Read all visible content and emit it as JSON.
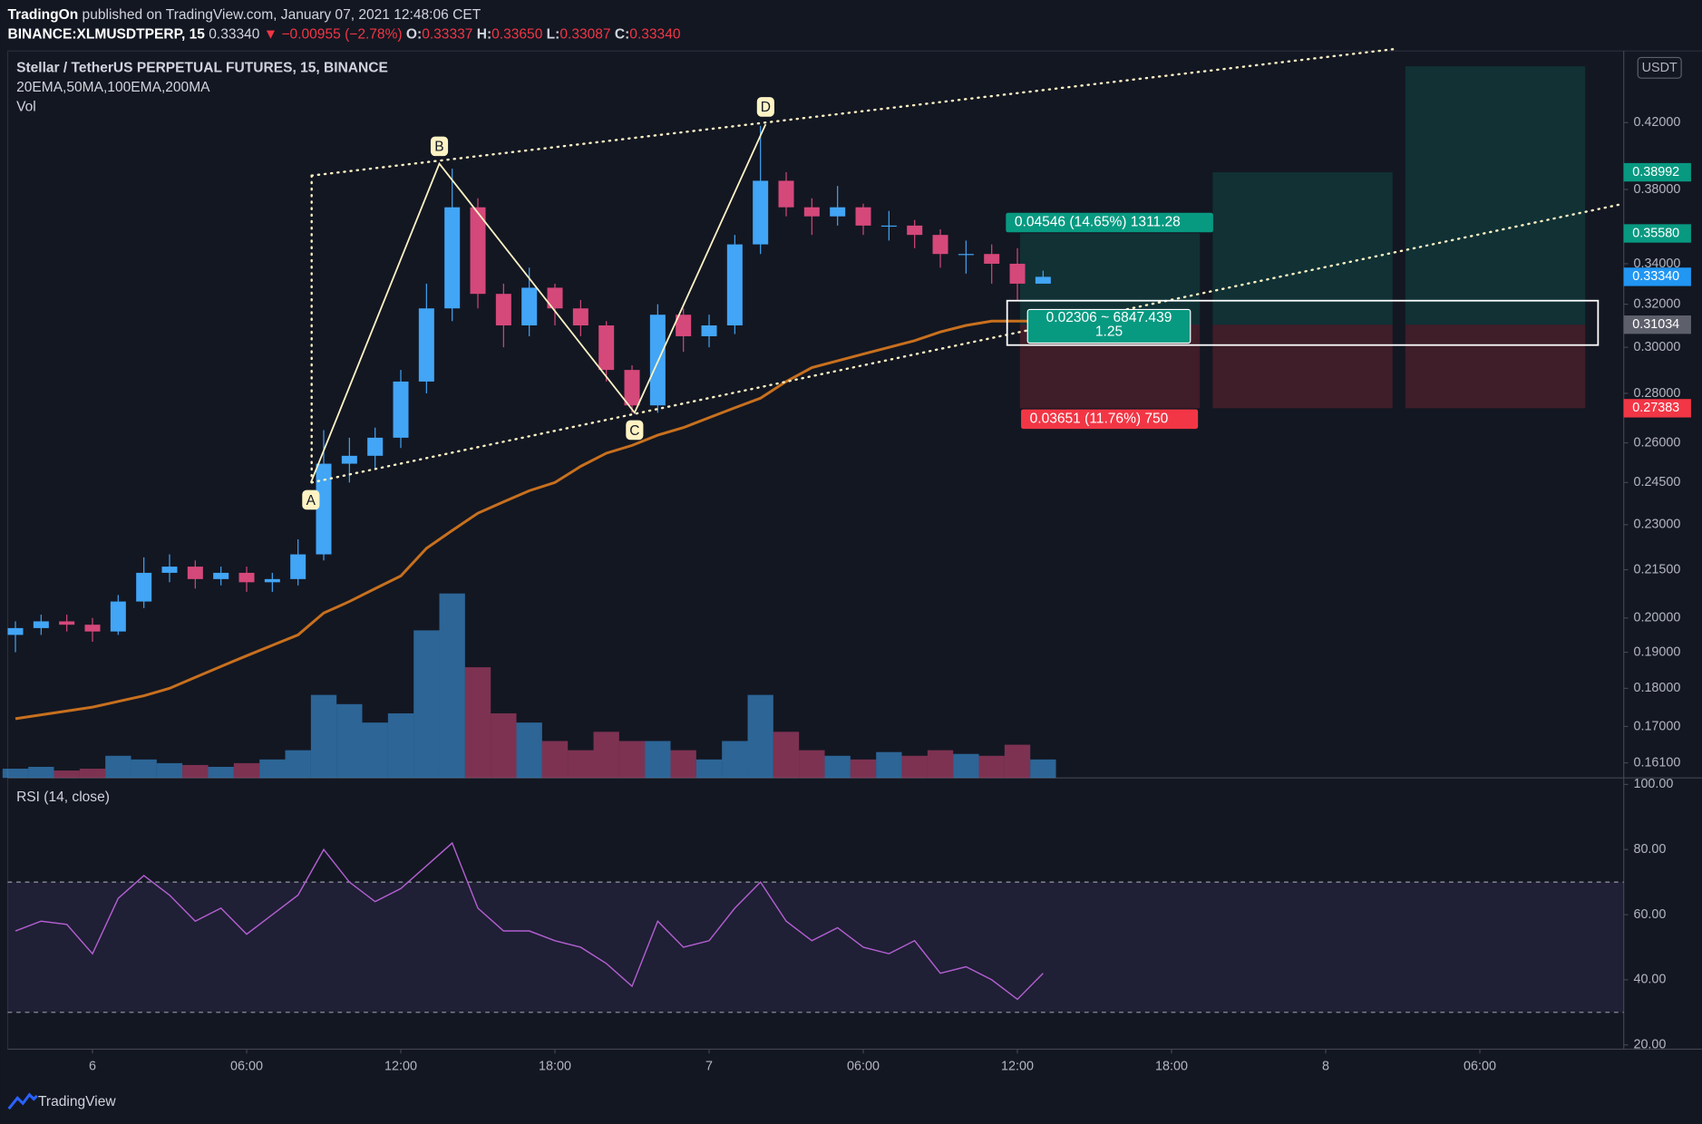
{
  "header": {
    "publisher": "TradingOn",
    "published": "published on TradingView.com, January 07, 2021 12:48:06 CET",
    "symbol": "BINANCE:XLMUSDTPERP, 15",
    "last": "0.33340",
    "change": "▼ −0.00955 (−2.78%)",
    "o_label": "O:",
    "open": "0.33337",
    "h_label": "H:",
    "high": "0.33650",
    "l_label": "L:",
    "low": "0.33087",
    "c_label": "C:",
    "close": "0.33340"
  },
  "footer": {
    "brand": "TradingView"
  },
  "chart_data": [
    {
      "type": "candlestick",
      "title": "Stellar / TetherUS PERPETUAL FUTURES, 15, BINANCE",
      "subtitle": "20EMA,50MA,100EMA,200MA",
      "volume_label": "Vol",
      "currency": "USDT",
      "log_scale": true,
      "x": [
        -3,
        -2,
        -1,
        0,
        1,
        2,
        3,
        4,
        5,
        6,
        7,
        8,
        9,
        10,
        11,
        12,
        13,
        14,
        15,
        16,
        17,
        18,
        19,
        20,
        21,
        22,
        23,
        24,
        25,
        26,
        27,
        28,
        29,
        30,
        31,
        32,
        33,
        34,
        35,
        36,
        37
      ],
      "xlim": [
        -3.3,
        59.6
      ],
      "ylim": [
        0.1574,
        0.4676
      ],
      "yticks": [
        {
          "value": 0.42,
          "label": "0.42000"
        },
        {
          "value": 0.38,
          "label": "0.38000"
        },
        {
          "value": 0.34,
          "label": "0.34000"
        },
        {
          "value": 0.32,
          "label": "0.32000"
        },
        {
          "value": 0.3,
          "label": "0.30000"
        },
        {
          "value": 0.28,
          "label": "0.28000"
        },
        {
          "value": 0.26,
          "label": "0.26000"
        },
        {
          "value": 0.245,
          "label": "0.24500"
        },
        {
          "value": 0.23,
          "label": "0.23000"
        },
        {
          "value": 0.215,
          "label": "0.21500"
        },
        {
          "value": 0.2,
          "label": "0.20000"
        },
        {
          "value": 0.19,
          "label": "0.19000"
        },
        {
          "value": 0.18,
          "label": "0.18000"
        },
        {
          "value": 0.17,
          "label": "0.17000"
        },
        {
          "value": 0.161,
          "label": "0.16100"
        }
      ],
      "up_color": "#42a5f5",
      "down_color": "#d5487a",
      "open": [
        0.195,
        0.197,
        0.199,
        0.198,
        0.196,
        0.205,
        0.214,
        0.216,
        0.212,
        0.214,
        0.211,
        0.212,
        0.22,
        0.252,
        0.255,
        0.262,
        0.285,
        0.318,
        0.37,
        0.325,
        0.31,
        0.328,
        0.318,
        0.31,
        0.29,
        0.275,
        0.315,
        0.305,
        0.31,
        0.35,
        0.385,
        0.37,
        0.365,
        0.37,
        0.36,
        0.36,
        0.355,
        0.345,
        0.345,
        0.34,
        0.33
      ],
      "high": [
        0.199,
        0.201,
        0.201,
        0.2,
        0.207,
        0.219,
        0.22,
        0.218,
        0.216,
        0.216,
        0.214,
        0.225,
        0.265,
        0.262,
        0.266,
        0.29,
        0.33,
        0.392,
        0.375,
        0.33,
        0.338,
        0.33,
        0.322,
        0.312,
        0.292,
        0.32,
        0.318,
        0.315,
        0.355,
        0.418,
        0.39,
        0.375,
        0.382,
        0.372,
        0.368,
        0.363,
        0.358,
        0.352,
        0.35,
        0.348,
        0.3365
      ],
      "low": [
        0.19,
        0.195,
        0.196,
        0.193,
        0.195,
        0.203,
        0.211,
        0.209,
        0.21,
        0.208,
        0.208,
        0.21,
        0.218,
        0.245,
        0.25,
        0.258,
        0.28,
        0.312,
        0.318,
        0.3,
        0.305,
        0.31,
        0.305,
        0.285,
        0.272,
        0.272,
        0.298,
        0.3,
        0.306,
        0.345,
        0.365,
        0.355,
        0.36,
        0.355,
        0.352,
        0.348,
        0.338,
        0.335,
        0.33,
        0.322,
        0.33087
      ],
      "close": [
        0.197,
        0.199,
        0.198,
        0.196,
        0.205,
        0.214,
        0.216,
        0.212,
        0.214,
        0.211,
        0.212,
        0.22,
        0.252,
        0.255,
        0.262,
        0.285,
        0.318,
        0.37,
        0.325,
        0.31,
        0.328,
        0.318,
        0.31,
        0.29,
        0.275,
        0.315,
        0.305,
        0.31,
        0.35,
        0.385,
        0.37,
        0.365,
        0.37,
        0.36,
        0.36,
        0.355,
        0.345,
        0.345,
        0.34,
        0.33,
        0.3334
      ],
      "ema": {
        "color": "#c8701e",
        "values": [
          0.172,
          0.173,
          0.174,
          0.175,
          0.1765,
          0.178,
          0.18,
          0.183,
          0.186,
          0.189,
          0.192,
          0.195,
          0.2015,
          0.205,
          0.209,
          0.213,
          0.222,
          0.228,
          0.234,
          0.238,
          0.242,
          0.245,
          0.251,
          0.256,
          0.259,
          0.263,
          0.266,
          0.27,
          0.274,
          0.278,
          0.285,
          0.291,
          0.294,
          0.297,
          0.3,
          0.303,
          0.307,
          0.31,
          0.312,
          0.312,
          0.312
        ]
      },
      "volume": {
        "values": [
          5,
          6,
          4,
          5,
          12,
          10,
          8,
          7,
          6,
          8,
          10,
          15,
          45,
          40,
          30,
          35,
          80,
          100,
          60,
          35,
          30,
          20,
          15,
          25,
          20,
          20,
          15,
          10,
          20,
          45,
          25,
          15,
          12,
          10,
          14,
          12,
          15,
          13,
          12,
          18,
          10
        ]
      },
      "price_labels": [
        {
          "value": 0.38992,
          "label": "0.38992",
          "color": "#089981"
        },
        {
          "value": 0.3558,
          "label": "0.35580",
          "color": "#089981"
        },
        {
          "value": 0.3334,
          "label": "0.33340",
          "color": "#2196f3"
        },
        {
          "value": 0.31034,
          "label": "0.31034",
          "color": "#5d606b"
        },
        {
          "value": 0.27383,
          "label": "0.27383",
          "color": "#f23645"
        }
      ],
      "pattern": {
        "color": "#fff3c4",
        "points": [
          {
            "label": "A",
            "x": 8.5,
            "y": 0.245
          },
          {
            "label": "B",
            "x": 13.5,
            "y": 0.395
          },
          {
            "label": "C",
            "x": 21.1,
            "y": 0.272
          },
          {
            "label": "D",
            "x": 26.2,
            "y": 0.419
          }
        ]
      },
      "trendlines": [
        {
          "x": [
            8.53,
            50.7
          ],
          "y": [
            0.388,
            0.469
          ]
        },
        {
          "x": [
            8.53,
            59.6
          ],
          "y": [
            0.245,
            0.372
          ]
        },
        {
          "x": [
            8.53,
            8.53
          ],
          "y": [
            0.388,
            0.245
          ]
        }
      ],
      "position": {
        "x": [
          36.1,
          43.1
        ],
        "entry": 0.31034,
        "target": 0.3558,
        "stop": 0.27383,
        "profit_text": "0.04546 (14.65%) 1311.28",
        "loss_text": "0.03651 (11.76%) 750",
        "mid_text": "0.02306 ~ 6847.439",
        "ratio_text": "1.25"
      },
      "extra_positions": [
        {
          "x": [
            43.6,
            50.6
          ],
          "target": 0.38992
        },
        {
          "x": [
            51.1,
            58.1
          ],
          "target": 0.457
        }
      ],
      "selection_box": {
        "x": [
          35.6,
          58.6
        ],
        "y": [
          0.301,
          0.3217
        ]
      }
    },
    {
      "type": "line",
      "title": "RSI (14, close)",
      "color": "#b25fd0",
      "x": [
        -3,
        -2,
        -1,
        0,
        1,
        2,
        3,
        4,
        5,
        6,
        7,
        8,
        9,
        10,
        11,
        12,
        13,
        14,
        15,
        16,
        17,
        18,
        19,
        20,
        21,
        22,
        23,
        24,
        25,
        26,
        27,
        28,
        29,
        30,
        31,
        32,
        33,
        34,
        35,
        36,
        37
      ],
      "values": [
        55,
        58,
        57,
        48,
        65,
        72,
        66,
        58,
        62,
        54,
        60,
        66,
        80,
        70,
        64,
        68,
        75,
        82,
        62,
        55,
        55,
        52,
        50,
        45,
        38,
        58,
        50,
        52,
        62,
        70,
        58,
        52,
        56,
        50,
        48,
        52,
        42,
        44,
        40,
        34,
        42
      ],
      "xlim": [
        -3.3,
        59.6
      ],
      "xticks": [
        {
          "value": 0,
          "label": "6"
        },
        {
          "value": 6,
          "label": "06:00"
        },
        {
          "value": 12,
          "label": "12:00"
        },
        {
          "value": 18,
          "label": "18:00"
        },
        {
          "value": 24,
          "label": "7"
        },
        {
          "value": 30,
          "label": "06:00"
        },
        {
          "value": 36,
          "label": "12:00"
        },
        {
          "value": 42,
          "label": "18:00"
        },
        {
          "value": 48,
          "label": "8"
        },
        {
          "value": 54,
          "label": "06:00"
        }
      ],
      "ylim": [
        18.7,
        102
      ],
      "yticks": [
        {
          "value": 100,
          "label": "100.00"
        },
        {
          "value": 80,
          "label": "80.00"
        },
        {
          "value": 60,
          "label": "60.00"
        },
        {
          "value": 40,
          "label": "40.00"
        },
        {
          "value": 20,
          "label": "20.00"
        }
      ],
      "bands": [
        30,
        70
      ]
    }
  ]
}
